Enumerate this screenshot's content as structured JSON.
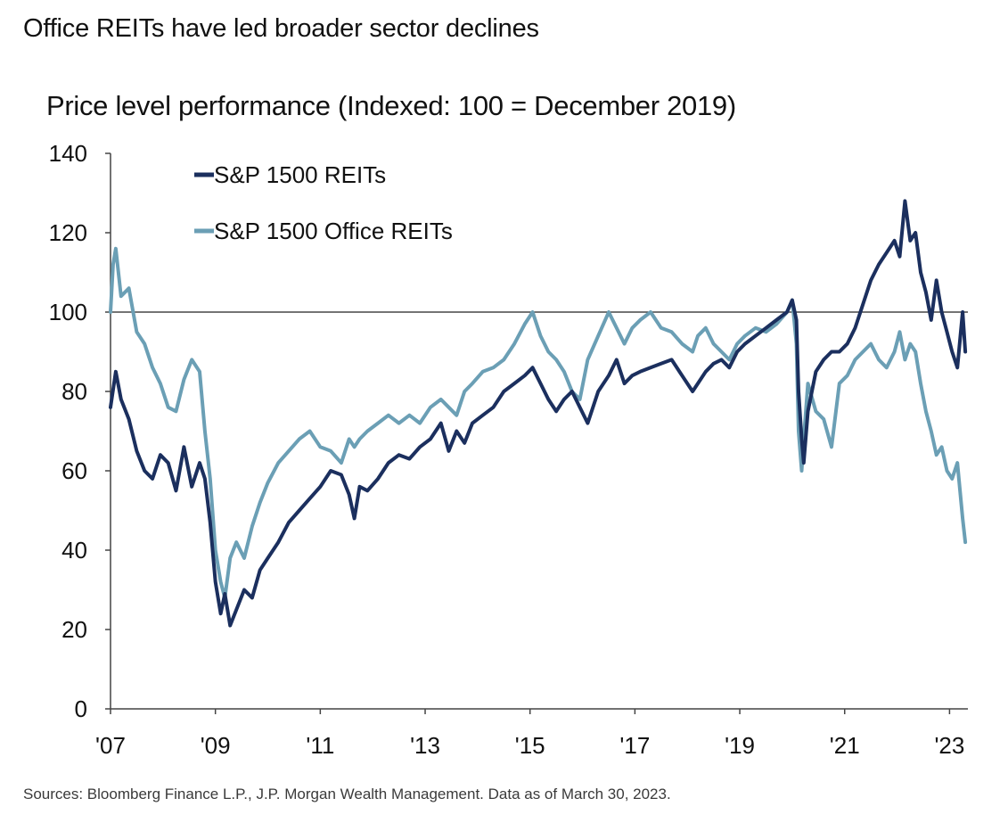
{
  "title": "Office REITs have led broader sector declines",
  "subtitle": "Price level performance (Indexed: 100 = December 2019)",
  "source": "Sources: Bloomberg Finance L.P., J.P. Morgan Wealth Management. Data as of March 30, 2023.",
  "colors": {
    "reits": "#1b2f5e",
    "office": "#6b9fb5",
    "axis": "#444444",
    "refline": "#222222"
  },
  "chart_data": {
    "type": "line",
    "ylim": [
      0,
      140
    ],
    "xlim": [
      2007.0,
      2023.35
    ],
    "y_ticks": [
      0,
      20,
      40,
      60,
      80,
      100,
      120,
      140
    ],
    "x_ticks": [
      {
        "value": 2007,
        "label": "'07"
      },
      {
        "value": 2009,
        "label": "'09"
      },
      {
        "value": 2011,
        "label": "'11"
      },
      {
        "value": 2013,
        "label": "'13"
      },
      {
        "value": 2015,
        "label": "'15"
      },
      {
        "value": 2017,
        "label": "'17"
      },
      {
        "value": 2019,
        "label": "'19"
      },
      {
        "value": 2021,
        "label": "'21"
      },
      {
        "value": 2023,
        "label": "'23"
      }
    ],
    "reference_line": 100,
    "legend_position": "top-left",
    "grid": false,
    "series": [
      {
        "name": "S&P 1500 REITs",
        "x": [
          2007.0,
          2007.1,
          2007.2,
          2007.35,
          2007.5,
          2007.65,
          2007.8,
          2007.95,
          2008.1,
          2008.25,
          2008.4,
          2008.55,
          2008.7,
          2008.8,
          2008.9,
          2009.0,
          2009.1,
          2009.18,
          2009.28,
          2009.4,
          2009.55,
          2009.7,
          2009.85,
          2010.0,
          2010.2,
          2010.4,
          2010.6,
          2010.8,
          2011.0,
          2011.2,
          2011.4,
          2011.55,
          2011.65,
          2011.75,
          2011.9,
          2012.1,
          2012.3,
          2012.5,
          2012.7,
          2012.9,
          2013.1,
          2013.3,
          2013.45,
          2013.6,
          2013.75,
          2013.9,
          2014.1,
          2014.3,
          2014.5,
          2014.7,
          2014.9,
          2015.05,
          2015.2,
          2015.35,
          2015.5,
          2015.65,
          2015.8,
          2015.95,
          2016.1,
          2016.3,
          2016.5,
          2016.65,
          2016.8,
          2016.95,
          2017.1,
          2017.3,
          2017.5,
          2017.7,
          2017.9,
          2018.1,
          2018.2,
          2018.35,
          2018.5,
          2018.65,
          2018.8,
          2018.95,
          2019.1,
          2019.3,
          2019.5,
          2019.7,
          2019.9,
          2020.0,
          2020.08,
          2020.12,
          2020.18,
          2020.22,
          2020.3,
          2020.45,
          2020.6,
          2020.75,
          2020.9,
          2021.05,
          2021.2,
          2021.35,
          2021.5,
          2021.65,
          2021.8,
          2021.95,
          2022.05,
          2022.15,
          2022.25,
          2022.35,
          2022.45,
          2022.55,
          2022.65,
          2022.75,
          2022.85,
          2022.95,
          2023.05,
          2023.15,
          2023.25,
          2023.3
        ],
        "values": [
          76,
          85,
          78,
          73,
          65,
          60,
          58,
          64,
          62,
          55,
          66,
          56,
          62,
          58,
          47,
          32,
          24,
          29,
          21,
          25,
          30,
          28,
          35,
          38,
          42,
          47,
          50,
          53,
          56,
          60,
          59,
          54,
          48,
          56,
          55,
          58,
          62,
          64,
          63,
          66,
          68,
          72,
          65,
          70,
          67,
          72,
          74,
          76,
          80,
          82,
          84,
          86,
          82,
          78,
          75,
          78,
          80,
          76,
          72,
          80,
          84,
          88,
          82,
          84,
          85,
          86,
          87,
          88,
          84,
          80,
          82,
          85,
          87,
          88,
          86,
          90,
          92,
          94,
          96,
          98,
          100,
          103,
          98,
          80,
          68,
          62,
          75,
          85,
          88,
          90,
          90,
          92,
          96,
          102,
          108,
          112,
          115,
          118,
          114,
          128,
          118,
          120,
          110,
          105,
          98,
          108,
          100,
          95,
          90,
          86,
          100,
          90
        ]
      },
      {
        "name": "S&P 1500 Office REITs",
        "x": [
          2007.0,
          2007.05,
          2007.1,
          2007.2,
          2007.35,
          2007.5,
          2007.65,
          2007.8,
          2007.95,
          2008.1,
          2008.25,
          2008.4,
          2008.55,
          2008.7,
          2008.8,
          2008.9,
          2009.0,
          2009.1,
          2009.18,
          2009.28,
          2009.4,
          2009.55,
          2009.7,
          2009.85,
          2010.0,
          2010.2,
          2010.4,
          2010.6,
          2010.8,
          2011.0,
          2011.2,
          2011.4,
          2011.55,
          2011.65,
          2011.75,
          2011.9,
          2012.1,
          2012.3,
          2012.5,
          2012.7,
          2012.9,
          2013.1,
          2013.3,
          2013.45,
          2013.6,
          2013.75,
          2013.9,
          2014.1,
          2014.3,
          2014.5,
          2014.7,
          2014.9,
          2015.05,
          2015.2,
          2015.35,
          2015.5,
          2015.65,
          2015.8,
          2015.95,
          2016.1,
          2016.3,
          2016.5,
          2016.65,
          2016.8,
          2016.95,
          2017.1,
          2017.3,
          2017.5,
          2017.7,
          2017.9,
          2018.1,
          2018.2,
          2018.35,
          2018.5,
          2018.65,
          2018.8,
          2018.95,
          2019.1,
          2019.3,
          2019.5,
          2019.7,
          2019.9,
          2020.0,
          2020.08,
          2020.12,
          2020.18,
          2020.22,
          2020.3,
          2020.45,
          2020.6,
          2020.75,
          2020.9,
          2021.05,
          2021.2,
          2021.35,
          2021.5,
          2021.65,
          2021.8,
          2021.95,
          2022.05,
          2022.15,
          2022.25,
          2022.35,
          2022.45,
          2022.55,
          2022.65,
          2022.75,
          2022.85,
          2022.95,
          2023.05,
          2023.15,
          2023.25,
          2023.3
        ],
        "values": [
          100,
          112,
          116,
          104,
          106,
          95,
          92,
          86,
          82,
          76,
          75,
          83,
          88,
          85,
          70,
          58,
          40,
          32,
          28,
          38,
          42,
          38,
          46,
          52,
          57,
          62,
          65,
          68,
          70,
          66,
          65,
          62,
          68,
          66,
          68,
          70,
          72,
          74,
          72,
          74,
          72,
          76,
          78,
          76,
          74,
          80,
          82,
          85,
          86,
          88,
          92,
          97,
          100,
          94,
          90,
          88,
          85,
          80,
          78,
          88,
          94,
          100,
          96,
          92,
          96,
          98,
          100,
          96,
          95,
          92,
          90,
          94,
          96,
          92,
          90,
          88,
          92,
          94,
          96,
          95,
          97,
          100,
          103,
          92,
          70,
          60,
          68,
          82,
          75,
          73,
          66,
          82,
          84,
          88,
          90,
          92,
          88,
          86,
          90,
          95,
          88,
          92,
          90,
          82,
          75,
          70,
          64,
          66,
          60,
          58,
          62,
          48,
          42
        ]
      }
    ]
  }
}
